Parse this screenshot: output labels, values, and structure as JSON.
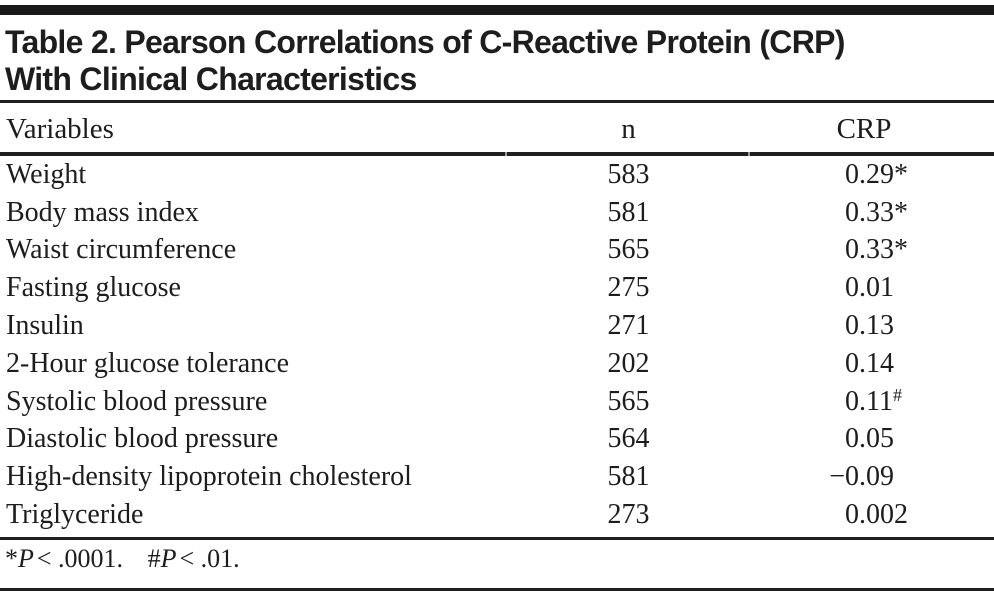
{
  "title": {
    "line1": "Table 2. Pearson Correlations of C-Reactive Protein (CRP)",
    "line2": "With Clinical Characteristics"
  },
  "columns": {
    "variable": "Variables",
    "n": "n",
    "crp": "CRP"
  },
  "table": {
    "rows": [
      {
        "variable": "Weight",
        "n": "583",
        "sign": "",
        "value": "0.29",
        "star": "*",
        "hash": ""
      },
      {
        "variable": "Body mass index",
        "n": "581",
        "sign": "",
        "value": "0.33",
        "star": "*",
        "hash": ""
      },
      {
        "variable": "Waist circumference",
        "n": "565",
        "sign": "",
        "value": "0.33",
        "star": "*",
        "hash": ""
      },
      {
        "variable": "Fasting glucose",
        "n": "275",
        "sign": "",
        "value": "0.01",
        "star": "",
        "hash": ""
      },
      {
        "variable": "Insulin",
        "n": "271",
        "sign": "",
        "value": "0.13",
        "star": "",
        "hash": ""
      },
      {
        "variable": "2-Hour glucose tolerance",
        "n": "202",
        "sign": "",
        "value": "0.14",
        "star": "",
        "hash": ""
      },
      {
        "variable": "Systolic blood pressure",
        "n": "565",
        "sign": "",
        "value": "0.11",
        "star": "",
        "hash": "#"
      },
      {
        "variable": "Diastolic blood pressure",
        "n": "564",
        "sign": "",
        "value": "0.05",
        "star": "",
        "hash": ""
      },
      {
        "variable": "High-density lipoprotein cholesterol",
        "n": "581",
        "sign": "−",
        "value": "0.09",
        "star": "",
        "hash": ""
      },
      {
        "variable": "Triglyceride",
        "n": "273",
        "sign": "",
        "value": "0.002",
        "star": "",
        "hash": ""
      }
    ]
  },
  "footnote": {
    "items": [
      {
        "marker": "*",
        "p": "P",
        "rest": "< .0001."
      },
      {
        "marker": "#",
        "p": "P",
        "rest": "< .01."
      }
    ]
  },
  "colors": {
    "ink": "#1d1d1d",
    "rule": "#1f1f1f",
    "background": "#ffffff"
  }
}
